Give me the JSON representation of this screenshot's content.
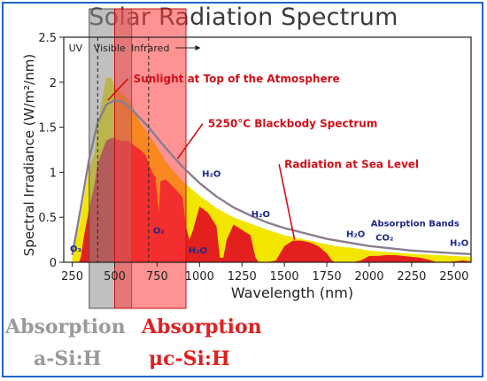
{
  "chart_data": {
    "type": "area",
    "title": "Solar Radiation Spectrum",
    "xlabel": "Wavelength (nm)",
    "ylabel": "Spectral Irradiance (W/m²/nm)",
    "xlim": [
      200,
      2600
    ],
    "ylim": [
      0,
      2.5
    ],
    "x_ticks": [
      "250",
      "500",
      "750",
      "1000",
      "1250",
      "1500",
      "1750",
      "2000",
      "2250",
      "2500"
    ],
    "x_tick_values": [
      250,
      500,
      750,
      1000,
      1250,
      1500,
      1750,
      2000,
      2250,
      2500
    ],
    "y_ticks": [
      "0",
      "0.5",
      "1",
      "1.5",
      "2",
      "2.5"
    ],
    "y_tick_values": [
      0,
      0.5,
      1,
      1.5,
      2,
      2.5
    ],
    "region_labels": [
      {
        "text": "UV",
        "x": 270
      },
      {
        "text": "Visible",
        "x": 470
      },
      {
        "text": "Infrared",
        "x": 710
      }
    ],
    "region_dividers": [
      400,
      700
    ],
    "series": [
      {
        "name": "Sunlight at Top of the Atmosphere",
        "color": "#f2e600",
        "x": [
          250,
          300,
          350,
          380,
          420,
          450,
          480,
          500,
          530,
          560,
          600,
          650,
          700,
          750,
          800,
          900,
          1000,
          1100,
          1200,
          1300,
          1400,
          1500,
          1600,
          1700,
          1800,
          1900,
          2000,
          2200,
          2400,
          2600
        ],
        "y": [
          0.05,
          0.5,
          1.05,
          1.2,
          1.75,
          2.05,
          2.05,
          1.95,
          1.9,
          1.85,
          1.75,
          1.55,
          1.42,
          1.28,
          1.12,
          0.9,
          0.74,
          0.6,
          0.5,
          0.43,
          0.36,
          0.3,
          0.26,
          0.22,
          0.18,
          0.16,
          0.13,
          0.1,
          0.08,
          0.06
        ]
      },
      {
        "name": "5250°C Blackbody Spectrum",
        "color": "#8a7d8f",
        "x": [
          250,
          300,
          350,
          400,
          450,
          500,
          550,
          600,
          650,
          700,
          800,
          900,
          1000,
          1100,
          1200,
          1300,
          1400,
          1500,
          1750,
          2000,
          2250,
          2500,
          2600
        ],
        "y": [
          0.08,
          0.6,
          1.15,
          1.55,
          1.75,
          1.8,
          1.78,
          1.7,
          1.6,
          1.5,
          1.27,
          1.06,
          0.88,
          0.73,
          0.61,
          0.52,
          0.44,
          0.38,
          0.26,
          0.18,
          0.13,
          0.1,
          0.09
        ]
      },
      {
        "name": "Radiation at Sea Level",
        "color": "#e4201f",
        "x": [
          250,
          290,
          300,
          320,
          350,
          380,
          400,
          430,
          450,
          480,
          500,
          520,
          550,
          580,
          600,
          650,
          680,
          700,
          720,
          740,
          760,
          770,
          800,
          850,
          900,
          920,
          940,
          960,
          1000,
          1050,
          1100,
          1120,
          1140,
          1160,
          1200,
          1250,
          1300,
          1330,
          1350,
          1400,
          1450,
          1500,
          1550,
          1600,
          1650,
          1700,
          1750,
          1780,
          1800,
          1850,
          1900,
          1950,
          2000,
          2050,
          2100,
          2150,
          2200,
          2300,
          2350,
          2400,
          2450,
          2500,
          2550,
          2600
        ],
        "y": [
          0,
          0,
          0.05,
          0.3,
          0.6,
          0.85,
          1.1,
          1.25,
          1.35,
          1.38,
          1.38,
          1.36,
          1.35,
          1.35,
          1.32,
          1.25,
          1.2,
          1.1,
          1.0,
          0.95,
          0.55,
          0.9,
          0.92,
          0.83,
          0.72,
          0.4,
          0.25,
          0.35,
          0.62,
          0.55,
          0.4,
          0.05,
          0.05,
          0.25,
          0.42,
          0.36,
          0.3,
          0.05,
          0.0,
          0.0,
          0.02,
          0.18,
          0.24,
          0.24,
          0.22,
          0.18,
          0.1,
          0.02,
          0.0,
          0.0,
          0.0,
          0.02,
          0.07,
          0.07,
          0.08,
          0.08,
          0.07,
          0.05,
          0.03,
          0.0,
          0.0,
          0.01,
          0.02,
          0.01
        ]
      }
    ],
    "annotations": [
      {
        "text": "Sunlight at Top of the Atmosphere",
        "x": 610,
        "y": 2.0
      },
      {
        "text": "5250°C Blackbody Spectrum",
        "x": 1050,
        "y": 1.5
      },
      {
        "text": "Radiation at Sea Level",
        "x": 1500,
        "y": 1.05
      }
    ],
    "absorption_labels": [
      {
        "text": "O₃",
        "x": 270,
        "y": 0.12
      },
      {
        "text": "O₂",
        "x": 760,
        "y": 0.32
      },
      {
        "text": "H₂O",
        "x": 1070,
        "y": 0.95
      },
      {
        "text": "H₂O",
        "x": 1360,
        "y": 0.5
      },
      {
        "text": "H₂O",
        "x": 990,
        "y": 0.1
      },
      {
        "text": "H₂O",
        "x": 1920,
        "y": 0.28
      },
      {
        "text": "CO₂",
        "x": 2090,
        "y": 0.24
      },
      {
        "text": "H₂O",
        "x": 2530,
        "y": 0.18
      },
      {
        "text": "Absorption Bands",
        "x": 2270,
        "y": 0.4
      }
    ],
    "absorption_bands": [
      {
        "name": "a-Si:H",
        "xmin": 350,
        "xmax": 600,
        "color": "#8c8c8c"
      },
      {
        "name": "μc-Si:H",
        "xmin": 500,
        "xmax": 920,
        "color": "#ff3b3b"
      }
    ],
    "legend": "none",
    "grid": false
  },
  "band_labels": {
    "a_line1": "Absorption",
    "a_line2": "a-Si:H",
    "uc_line1": "Absorption",
    "uc_line2": "μc-Si:H"
  }
}
